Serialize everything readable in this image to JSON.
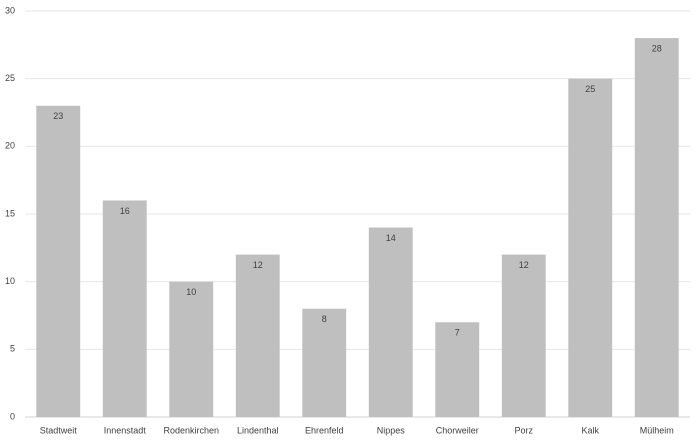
{
  "chart_data": {
    "type": "bar",
    "categories": [
      "Stadtweit",
      "Innenstadt",
      "Rodenkirchen",
      "Lindenthal",
      "Ehrenfeld",
      "Nippes",
      "Chorweiler",
      "Porz",
      "Kalk",
      "Mülheim"
    ],
    "values": [
      23,
      16,
      10,
      12,
      8,
      14,
      7,
      12,
      25,
      28
    ],
    "color": "#bfbfbf",
    "ylim": [
      0,
      30
    ],
    "yticks": [
      0,
      5,
      10,
      15,
      20,
      25,
      30
    ],
    "grid": true
  }
}
